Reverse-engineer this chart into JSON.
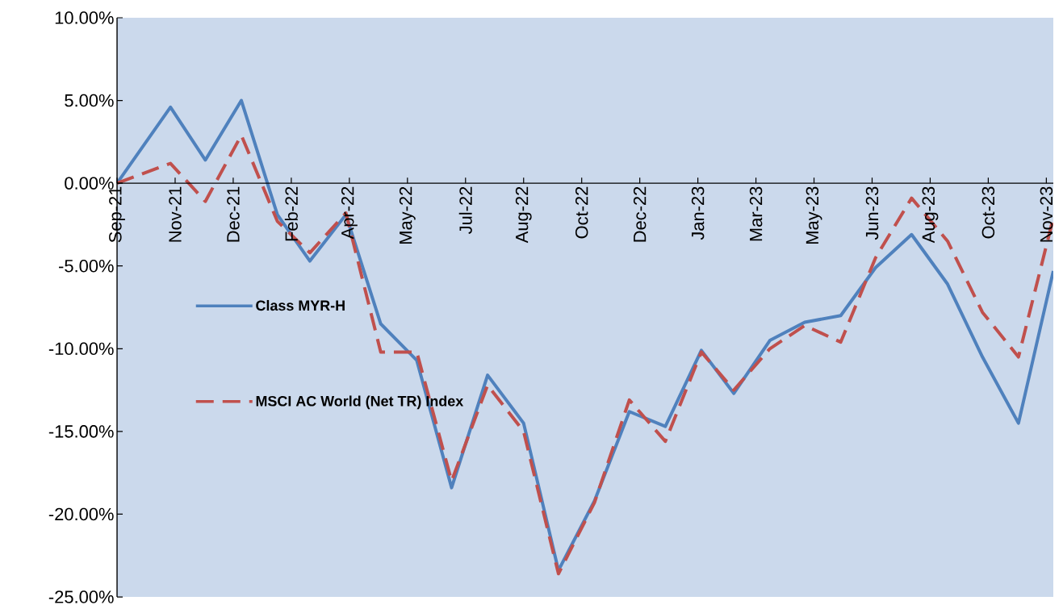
{
  "chart_data": {
    "type": "line",
    "x": [
      "2021-09-15",
      "2021-10-31",
      "2021-11-30",
      "2021-12-31",
      "2022-01-31",
      "2022-02-28",
      "2022-03-31",
      "2022-04-30",
      "2022-05-31",
      "2022-06-30",
      "2022-07-31",
      "2022-08-31",
      "2022-09-30",
      "2022-10-31",
      "2022-11-30",
      "2022-12-31",
      "2023-01-31",
      "2023-02-28",
      "2023-03-31",
      "2023-04-30",
      "2023-05-31",
      "2023-06-30",
      "2023-07-31",
      "2023-08-31",
      "2023-09-30",
      "2023-10-31",
      "2023-11-30"
    ],
    "series": [
      {
        "name": "Class MYR-H",
        "color": "#4f81bd",
        "line_style": "solid",
        "values": [
          0,
          4.6,
          1.4,
          5.0,
          -1.9,
          -4.7,
          -1.9,
          -8.5,
          -10.7,
          -18.4,
          -11.6,
          -14.5,
          -23.4,
          -19.2,
          -13.8,
          -14.7,
          -10.1,
          -12.7,
          -9.5,
          -8.4,
          -8.0,
          -5.1,
          -3.1,
          -6.1,
          -10.5,
          -14.5,
          -5.3
        ]
      },
      {
        "name": "MSCI AC World (Net TR) Index",
        "color": "#c0504d",
        "line_style": "dashed",
        "values": [
          0,
          1.2,
          -1.1,
          2.9,
          -2.3,
          -4.2,
          -1.8,
          -10.2,
          -10.2,
          -18.0,
          -12.2,
          -15.0,
          -23.6,
          -19.3,
          -13.1,
          -15.6,
          -10.2,
          -12.5,
          -10.0,
          -8.6,
          -9.6,
          -4.5,
          -0.9,
          -3.5,
          -7.8,
          -10.5,
          -2.1
        ]
      }
    ],
    "xlim": [
      "2021-09-15",
      "2023-11-30"
    ],
    "xticks": [
      {
        "value": "2021-09-15",
        "label": "Sep-21"
      },
      {
        "value": "2021-11-04",
        "label": "Nov-21"
      },
      {
        "value": "2021-12-24",
        "label": "Dec-21"
      },
      {
        "value": "2022-02-12",
        "label": "Feb-22"
      },
      {
        "value": "2022-04-03",
        "label": "Apr-22"
      },
      {
        "value": "2022-05-23",
        "label": "May-22"
      },
      {
        "value": "2022-07-12",
        "label": "Jul-22"
      },
      {
        "value": "2022-08-31",
        "label": "Aug-22"
      },
      {
        "value": "2022-10-20",
        "label": "Oct-22"
      },
      {
        "value": "2022-12-09",
        "label": "Dec-22"
      },
      {
        "value": "2023-01-28",
        "label": "Jan-23"
      },
      {
        "value": "2023-03-19",
        "label": "Mar-23"
      },
      {
        "value": "2023-05-08",
        "label": "May-23"
      },
      {
        "value": "2023-06-27",
        "label": "Jun-23"
      },
      {
        "value": "2023-08-16",
        "label": "Aug-23"
      },
      {
        "value": "2023-10-05",
        "label": "Oct-23"
      },
      {
        "value": "2023-11-24",
        "label": "Nov-23"
      }
    ],
    "ylim": [
      -25,
      10
    ],
    "yticks": [
      {
        "value": 10,
        "label": "10.00%"
      },
      {
        "value": 5,
        "label": "5.00%"
      },
      {
        "value": 0,
        "label": "0.00%"
      },
      {
        "value": -5,
        "label": "-5.00%"
      },
      {
        "value": -10,
        "label": "-10.00%"
      },
      {
        "value": -15,
        "label": "-15.00%"
      },
      {
        "value": -20,
        "label": "-20.00%"
      },
      {
        "value": -25,
        "label": "-25.00%"
      }
    ],
    "grid": false,
    "legend": "left",
    "marker": "none"
  }
}
